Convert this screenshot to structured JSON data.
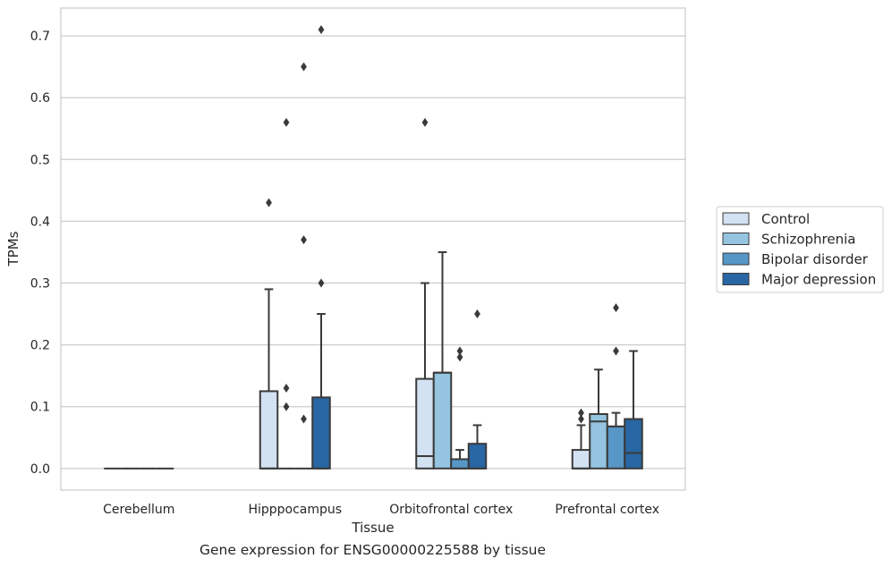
{
  "caption": "Gene expression for ENSG00000225588 by tissue",
  "chart_data": {
    "type": "box",
    "xlabel": "Tissue",
    "ylabel": "TPMs",
    "ylim": [
      -0.035,
      0.745
    ],
    "yticks": [
      0.0,
      0.1,
      0.2,
      0.3,
      0.4,
      0.5,
      0.6,
      0.7
    ],
    "ytick_labels": [
      "0.0",
      "0.1",
      "0.2",
      "0.3",
      "0.4",
      "0.5",
      "0.6",
      "0.7"
    ],
    "grid": true,
    "legend_position": "right",
    "categories": [
      "Cerebellum",
      "Hipppocampus",
      "Orbitofrontal cortex",
      "Prefrontal cortex"
    ],
    "series": [
      {
        "name": "Control",
        "color": "#d2e2f2",
        "boxes": [
          {
            "q1": 0.0,
            "median": 0.0,
            "q3": 0.0,
            "whisker_low": 0.0,
            "whisker_high": 0.0,
            "outliers": []
          },
          {
            "q1": 0.0,
            "median": 0.0,
            "q3": 0.125,
            "whisker_low": 0.0,
            "whisker_high": 0.29,
            "outliers": [
              0.43
            ]
          },
          {
            "q1": 0.0,
            "median": 0.02,
            "q3": 0.145,
            "whisker_low": 0.0,
            "whisker_high": 0.3,
            "outliers": [
              0.56
            ]
          },
          {
            "q1": 0.0,
            "median": 0.0,
            "q3": 0.03,
            "whisker_low": 0.0,
            "whisker_high": 0.07,
            "outliers": [
              0.08,
              0.09
            ]
          }
        ]
      },
      {
        "name": "Schizophrenia",
        "color": "#94c4df",
        "boxes": [
          {
            "q1": 0.0,
            "median": 0.0,
            "q3": 0.0,
            "whisker_low": 0.0,
            "whisker_high": 0.0,
            "outliers": []
          },
          {
            "q1": 0.0,
            "median": 0.0,
            "q3": 0.0,
            "whisker_low": 0.0,
            "whisker_high": 0.0,
            "outliers": [
              0.1,
              0.13,
              0.56
            ]
          },
          {
            "q1": 0.0,
            "median": 0.155,
            "q3": 0.155,
            "whisker_low": 0.0,
            "whisker_high": 0.35,
            "outliers": []
          },
          {
            "q1": 0.0,
            "median": 0.076,
            "q3": 0.088,
            "whisker_low": 0.0,
            "whisker_high": 0.16,
            "outliers": []
          }
        ]
      },
      {
        "name": "Bipolar disorder",
        "color": "#5697c7",
        "boxes": [
          {
            "q1": 0.0,
            "median": 0.0,
            "q3": 0.0,
            "whisker_low": 0.0,
            "whisker_high": 0.0,
            "outliers": []
          },
          {
            "q1": 0.0,
            "median": 0.0,
            "q3": 0.0,
            "whisker_low": 0.0,
            "whisker_high": 0.0,
            "outliers": [
              0.08,
              0.37,
              0.65
            ]
          },
          {
            "q1": 0.0,
            "median": 0.0,
            "q3": 0.015,
            "whisker_low": 0.0,
            "whisker_high": 0.03,
            "outliers": [
              0.18,
              0.19
            ]
          },
          {
            "q1": 0.0,
            "median": 0.068,
            "q3": 0.068,
            "whisker_low": 0.0,
            "whisker_high": 0.09,
            "outliers": [
              0.19,
              0.26
            ]
          }
        ]
      },
      {
        "name": "Major depression",
        "color": "#2866a4",
        "boxes": [
          {
            "q1": 0.0,
            "median": 0.0,
            "q3": 0.0,
            "whisker_low": 0.0,
            "whisker_high": 0.0,
            "outliers": []
          },
          {
            "q1": 0.0,
            "median": 0.0,
            "q3": 0.115,
            "whisker_low": 0.0,
            "whisker_high": 0.25,
            "outliers": [
              0.3,
              0.71
            ]
          },
          {
            "q1": 0.0,
            "median": 0.0,
            "q3": 0.04,
            "whisker_low": 0.0,
            "whisker_high": 0.07,
            "outliers": [
              0.25
            ]
          },
          {
            "q1": 0.0,
            "median": 0.025,
            "q3": 0.08,
            "whisker_low": 0.0,
            "whisker_high": 0.19,
            "outliers": []
          }
        ]
      }
    ],
    "styles": {
      "box_edge_color": "#3a3a3a",
      "grid_color": "#cccccc",
      "frame_color": "#cccccc",
      "outlier_color": "#3a3a3a",
      "text_color": "#262626"
    }
  }
}
